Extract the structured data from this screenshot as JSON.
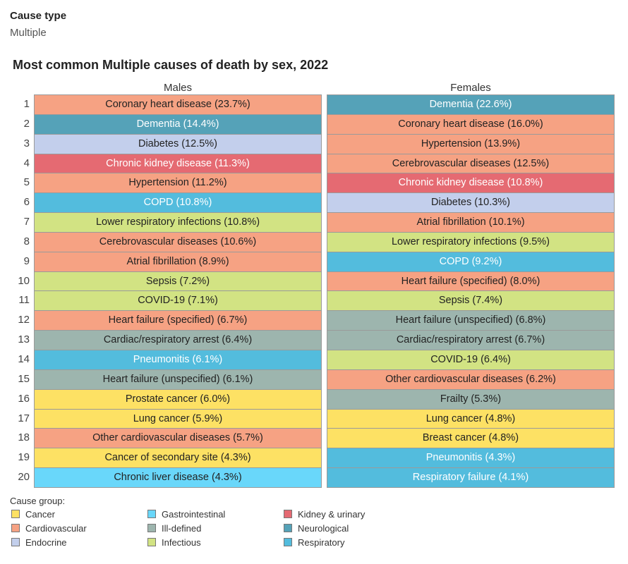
{
  "filter": {
    "label": "Cause type",
    "value": "Multiple"
  },
  "groups": {
    "Cancer": "#fde164",
    "Cardiovascular": "#f6a283",
    "Endocrine": "#c3cfec",
    "Gastrointestinal": "#69d7fa",
    "Ill-defined": "#9db5ae",
    "Infectious": "#d2e383",
    "Kidney & urinary": "#e56a72",
    "Neurological": "#55a2b8",
    "Respiratory": "#53bcdd"
  },
  "light_text_groups": [
    "Kidney & urinary",
    "Neurological",
    "Respiratory"
  ],
  "legend": {
    "title": "Cause group:",
    "items": [
      "Cancer",
      "Cardiovascular",
      "Endocrine",
      "Gastrointestinal",
      "Ill-defined",
      "Infectious",
      "Kidney & urinary",
      "Neurological",
      "Respiratory"
    ]
  },
  "chart_data": {
    "type": "table",
    "title": "Most common Multiple causes of death by sex, 2022",
    "ranks": [
      "1",
      "2",
      "3",
      "4",
      "5",
      "6",
      "7",
      "8",
      "9",
      "10",
      "11",
      "12",
      "13",
      "14",
      "15",
      "16",
      "17",
      "18",
      "19",
      "20"
    ],
    "series": [
      {
        "name": "Males",
        "rows": [
          {
            "label": "Coronary heart disease (23.7%)",
            "cause": "Coronary heart disease",
            "value": 23.7,
            "group": "Cardiovascular"
          },
          {
            "label": "Dementia (14.4%)",
            "cause": "Dementia",
            "value": 14.4,
            "group": "Neurological"
          },
          {
            "label": "Diabetes (12.5%)",
            "cause": "Diabetes",
            "value": 12.5,
            "group": "Endocrine"
          },
          {
            "label": "Chronic kidney disease (11.3%)",
            "cause": "Chronic kidney disease",
            "value": 11.3,
            "group": "Kidney & urinary"
          },
          {
            "label": "Hypertension (11.2%)",
            "cause": "Hypertension",
            "value": 11.2,
            "group": "Cardiovascular"
          },
          {
            "label": "COPD (10.8%)",
            "cause": "COPD",
            "value": 10.8,
            "group": "Respiratory"
          },
          {
            "label": "Lower respiratory infections (10.8%)",
            "cause": "Lower respiratory infections",
            "value": 10.8,
            "group": "Infectious"
          },
          {
            "label": "Cerebrovascular diseases (10.6%)",
            "cause": "Cerebrovascular diseases",
            "value": 10.6,
            "group": "Cardiovascular"
          },
          {
            "label": "Atrial fibrillation (8.9%)",
            "cause": "Atrial fibrillation",
            "value": 8.9,
            "group": "Cardiovascular"
          },
          {
            "label": "Sepsis (7.2%)",
            "cause": "Sepsis",
            "value": 7.2,
            "group": "Infectious"
          },
          {
            "label": "COVID-19 (7.1%)",
            "cause": "COVID-19",
            "value": 7.1,
            "group": "Infectious"
          },
          {
            "label": "Heart failure (specified) (6.7%)",
            "cause": "Heart failure (specified)",
            "value": 6.7,
            "group": "Cardiovascular"
          },
          {
            "label": "Cardiac/respiratory arrest (6.4%)",
            "cause": "Cardiac/respiratory arrest",
            "value": 6.4,
            "group": "Ill-defined"
          },
          {
            "label": "Pneumonitis (6.1%)",
            "cause": "Pneumonitis",
            "value": 6.1,
            "group": "Respiratory"
          },
          {
            "label": "Heart failure (unspecified) (6.1%)",
            "cause": "Heart failure (unspecified)",
            "value": 6.1,
            "group": "Ill-defined"
          },
          {
            "label": "Prostate cancer (6.0%)",
            "cause": "Prostate cancer",
            "value": 6.0,
            "group": "Cancer"
          },
          {
            "label": "Lung cancer (5.9%)",
            "cause": "Lung cancer",
            "value": 5.9,
            "group": "Cancer"
          },
          {
            "label": "Other cardiovascular diseases (5.7%)",
            "cause": "Other cardiovascular diseases",
            "value": 5.7,
            "group": "Cardiovascular"
          },
          {
            "label": "Cancer of secondary site (4.3%)",
            "cause": "Cancer of secondary site",
            "value": 4.3,
            "group": "Cancer"
          },
          {
            "label": "Chronic liver disease (4.3%)",
            "cause": "Chronic liver disease",
            "value": 4.3,
            "group": "Gastrointestinal"
          }
        ]
      },
      {
        "name": "Females",
        "rows": [
          {
            "label": "Dementia (22.6%)",
            "cause": "Dementia",
            "value": 22.6,
            "group": "Neurological"
          },
          {
            "label": "Coronary heart disease (16.0%)",
            "cause": "Coronary heart disease",
            "value": 16.0,
            "group": "Cardiovascular"
          },
          {
            "label": "Hypertension (13.9%)",
            "cause": "Hypertension",
            "value": 13.9,
            "group": "Cardiovascular"
          },
          {
            "label": "Cerebrovascular diseases (12.5%)",
            "cause": "Cerebrovascular diseases",
            "value": 12.5,
            "group": "Cardiovascular"
          },
          {
            "label": "Chronic kidney disease (10.8%)",
            "cause": "Chronic kidney disease",
            "value": 10.8,
            "group": "Kidney & urinary"
          },
          {
            "label": "Diabetes (10.3%)",
            "cause": "Diabetes",
            "value": 10.3,
            "group": "Endocrine"
          },
          {
            "label": "Atrial fibrillation (10.1%)",
            "cause": "Atrial fibrillation",
            "value": 10.1,
            "group": "Cardiovascular"
          },
          {
            "label": "Lower respiratory infections (9.5%)",
            "cause": "Lower respiratory infections",
            "value": 9.5,
            "group": "Infectious"
          },
          {
            "label": "COPD (9.2%)",
            "cause": "COPD",
            "value": 9.2,
            "group": "Respiratory"
          },
          {
            "label": "Heart failure (specified) (8.0%)",
            "cause": "Heart failure (specified)",
            "value": 8.0,
            "group": "Cardiovascular"
          },
          {
            "label": "Sepsis (7.4%)",
            "cause": "Sepsis",
            "value": 7.4,
            "group": "Infectious"
          },
          {
            "label": "Heart failure (unspecified) (6.8%)",
            "cause": "Heart failure (unspecified)",
            "value": 6.8,
            "group": "Ill-defined"
          },
          {
            "label": "Cardiac/respiratory arrest (6.7%)",
            "cause": "Cardiac/respiratory arrest",
            "value": 6.7,
            "group": "Ill-defined"
          },
          {
            "label": "COVID-19 (6.4%)",
            "cause": "COVID-19",
            "value": 6.4,
            "group": "Infectious"
          },
          {
            "label": "Other cardiovascular diseases (6.2%)",
            "cause": "Other cardiovascular diseases",
            "value": 6.2,
            "group": "Cardiovascular"
          },
          {
            "label": "Frailty (5.3%)",
            "cause": "Frailty",
            "value": 5.3,
            "group": "Ill-defined"
          },
          {
            "label": "Lung cancer (4.8%)",
            "cause": "Lung cancer",
            "value": 4.8,
            "group": "Cancer"
          },
          {
            "label": "Breast cancer (4.8%)",
            "cause": "Breast cancer",
            "value": 4.8,
            "group": "Cancer"
          },
          {
            "label": "Pneumonitis (4.3%)",
            "cause": "Pneumonitis",
            "value": 4.3,
            "group": "Respiratory"
          },
          {
            "label": "Respiratory failure (4.1%)",
            "cause": "Respiratory failure",
            "value": 4.1,
            "group": "Respiratory"
          }
        ]
      }
    ]
  }
}
